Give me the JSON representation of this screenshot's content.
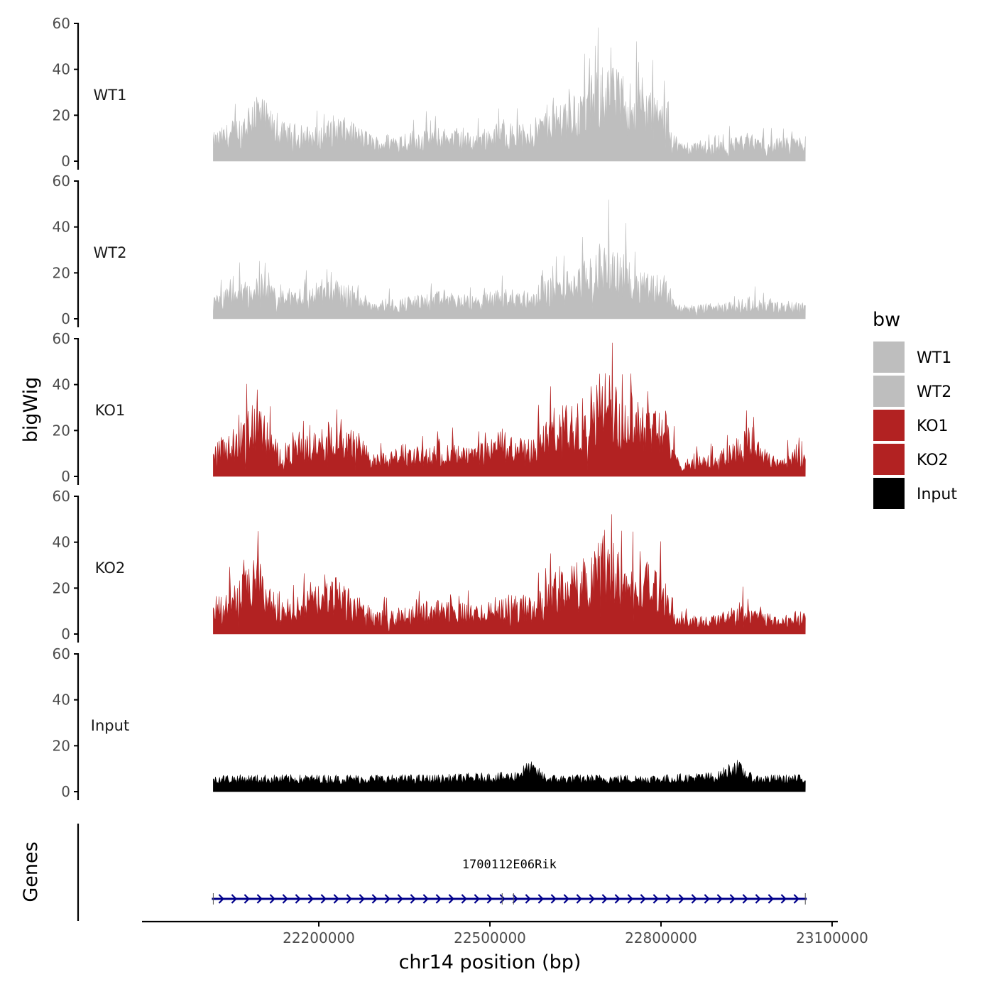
{
  "chart_data": {
    "type": "area",
    "ylabel": "bigWig",
    "xlabel": "chr14 position (bp)",
    "genes_label": "Genes",
    "xlim": [
      21890000,
      23110000
    ],
    "x_ticks": [
      22200000,
      22500000,
      22800000,
      23100000
    ],
    "x_tick_labels": [
      "22200000",
      "22500000",
      "22800000",
      "23100000"
    ],
    "ylim": [
      0,
      60
    ],
    "y_ticks": [
      0,
      20,
      40,
      60
    ],
    "y_tick_labels": [
      "0",
      "20",
      "40",
      "60"
    ],
    "data_range": [
      22015000,
      23053000
    ],
    "legend": {
      "title": "bw",
      "position": "right",
      "entries": [
        {
          "label": "WT1",
          "color": "#bebebe"
        },
        {
          "label": "WT2",
          "color": "#bebebe"
        },
        {
          "label": "KO1",
          "color": "#b22222"
        },
        {
          "label": "KO2",
          "color": "#b22222"
        },
        {
          "label": "Input",
          "color": "#000000"
        }
      ]
    },
    "series": [
      {
        "name": "WT1",
        "color": "#bebebe",
        "profile_x": [
          22015000,
          22060000,
          22090000,
          22130000,
          22200000,
          22230000,
          22300000,
          22360000,
          22420000,
          22470000,
          22520000,
          22570000,
          22610000,
          22660000,
          22700000,
          22740000,
          22780000,
          22810000,
          22830000,
          22900000,
          22950000,
          23000000,
          23053000
        ],
        "profile_y": [
          10,
          16,
          26,
          14,
          12,
          17,
          9,
          11,
          12,
          10,
          14,
          13,
          22,
          25,
          36,
          30,
          26,
          20,
          7,
          7,
          10,
          8,
          9
        ]
      },
      {
        "name": "WT2",
        "color": "#bebebe",
        "profile_x": [
          22015000,
          22060000,
          22090000,
          22130000,
          22200000,
          22230000,
          22300000,
          22360000,
          22420000,
          22470000,
          22520000,
          22570000,
          22610000,
          22660000,
          22700000,
          22740000,
          22780000,
          22810000,
          22830000,
          22900000,
          22950000,
          23000000,
          23053000
        ],
        "profile_y": [
          8,
          13,
          15,
          10,
          13,
          14,
          7,
          8,
          10,
          8,
          11,
          10,
          15,
          19,
          28,
          22,
          17,
          14,
          5,
          5,
          8,
          6,
          7
        ]
      },
      {
        "name": "KO1",
        "color": "#b22222",
        "profile_x": [
          22015000,
          22060000,
          22090000,
          22130000,
          22200000,
          22230000,
          22300000,
          22360000,
          22420000,
          22470000,
          22520000,
          22570000,
          22610000,
          22660000,
          22700000,
          22740000,
          22780000,
          22810000,
          22830000,
          22900000,
          22950000,
          23000000,
          23053000
        ],
        "profile_y": [
          12,
          18,
          28,
          11,
          16,
          22,
          8,
          10,
          12,
          10,
          17,
          13,
          24,
          27,
          40,
          27,
          30,
          23,
          6,
          8,
          18,
          7,
          10
        ]
      },
      {
        "name": "KO2",
        "color": "#b22222",
        "profile_x": [
          22015000,
          22060000,
          22090000,
          22130000,
          22200000,
          22230000,
          22300000,
          22360000,
          22420000,
          22470000,
          22520000,
          22570000,
          22610000,
          22660000,
          22700000,
          22740000,
          22780000,
          22810000,
          22830000,
          22900000,
          22950000,
          23000000,
          23053000
        ],
        "profile_y": [
          12,
          20,
          27,
          11,
          17,
          20,
          8,
          10,
          13,
          10,
          14,
          13,
          22,
          26,
          38,
          24,
          26,
          20,
          6,
          7,
          13,
          6,
          9
        ]
      },
      {
        "name": "Input",
        "color": "#000000",
        "profile_x": [
          22015000,
          22200000,
          22400000,
          22540000,
          22570000,
          22600000,
          22800000,
          22900000,
          22930000,
          22960000,
          23053000
        ],
        "profile_y": [
          6,
          6,
          6,
          7,
          11,
          6,
          6,
          7,
          12,
          6,
          6
        ]
      }
    ],
    "gene_track": {
      "genes": [
        {
          "name": "1700112E06Rik",
          "start": 22015000,
          "end": 23053000,
          "strand": "+",
          "color": "#00008b"
        }
      ]
    }
  }
}
